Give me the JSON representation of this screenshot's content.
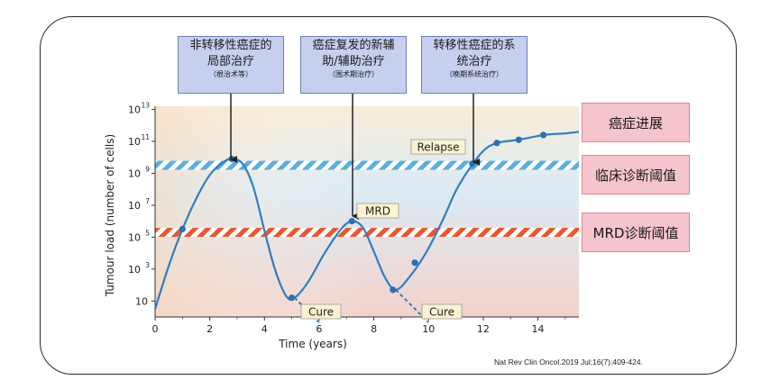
{
  "chart_data": {
    "type": "line",
    "xlabel": "Time (years)",
    "ylabel": "Tumour load (number of cells)",
    "xlim": [
      0,
      15.5
    ],
    "ylim_log10": [
      0,
      13.2
    ],
    "x_ticks": [
      "0",
      "2",
      "4",
      "6",
      "8",
      "10",
      "12",
      "14"
    ],
    "y_ticks": [
      {
        "base": "10",
        "exp": "13"
      },
      {
        "base": "10",
        "exp": "11"
      },
      {
        "base": "10",
        "exp": "9"
      },
      {
        "base": "10",
        "exp": "7"
      },
      {
        "base": "10",
        "exp": "5"
      },
      {
        "base": "10",
        "exp": "3"
      },
      {
        "base": "10",
        "exp": ""
      }
    ],
    "thresholds": [
      {
        "name": "clinical_detection",
        "log10": 9.5,
        "color": "#5aaee0"
      },
      {
        "name": "mrd_detection",
        "log10": 5.3,
        "color": "#e8572f"
      }
    ],
    "series_curve": [
      [
        0,
        0.5
      ],
      [
        0.5,
        3.2
      ],
      [
        1,
        5.5
      ],
      [
        1.5,
        7.4
      ],
      [
        2,
        8.9
      ],
      [
        2.5,
        9.7
      ],
      [
        2.8,
        9.9
      ],
      [
        3.2,
        9.6
      ],
      [
        3.6,
        8.1
      ],
      [
        4,
        5.4
      ],
      [
        4.4,
        2.9
      ],
      [
        4.8,
        1.3
      ],
      [
        5.1,
        1.2
      ],
      [
        5.6,
        2.2
      ],
      [
        6.2,
        4.0
      ],
      [
        6.8,
        5.5
      ],
      [
        7.2,
        6.0
      ],
      [
        7.6,
        5.6
      ],
      [
        8.0,
        4.1
      ],
      [
        8.4,
        2.5
      ],
      [
        8.8,
        1.7
      ],
      [
        9.3,
        2.5
      ],
      [
        9.9,
        4.0
      ],
      [
        10.5,
        6.0
      ],
      [
        11.0,
        7.9
      ],
      [
        11.5,
        9.3
      ],
      [
        12.0,
        10.4
      ],
      [
        12.5,
        10.9
      ],
      [
        13.3,
        11.1
      ],
      [
        14.2,
        11.4
      ],
      [
        15.0,
        11.5
      ],
      [
        15.5,
        11.6
      ]
    ],
    "points": [
      [
        1,
        5.5
      ],
      [
        2.8,
        9.9
      ],
      [
        5.0,
        1.2
      ],
      [
        7.2,
        6.0
      ],
      [
        8.7,
        1.7
      ],
      [
        9.5,
        3.4
      ],
      [
        11.6,
        9.6
      ],
      [
        12.5,
        10.9
      ],
      [
        13.3,
        11.1
      ],
      [
        14.2,
        11.4
      ]
    ],
    "cure_branches": [
      {
        "from": [
          5.1,
          1.2
        ],
        "to": [
          6.0,
          -0.4
        ]
      },
      {
        "from": [
          8.8,
          1.7
        ],
        "to": [
          10.0,
          -0.4
        ]
      }
    ],
    "labels": {
      "relapse": "Relapse",
      "mrd": "MRD",
      "cure1": "Cure",
      "cure2": "Cure"
    },
    "colors": {
      "curve": "#2f7fc1",
      "point": "#2f6fae",
      "bg_left": "#f7e0c3",
      "bg_mid": "#dcebf4",
      "bg_low": "#f3cfc8",
      "label_bg": "#fbf3cf"
    }
  },
  "boxes": [
    {
      "main": "非转移性癌症的局部治疗",
      "line1": "非转移性癌症的",
      "line2": "局部治疗",
      "sub": "（根治术等）"
    },
    {
      "line1": "癌症复发的新辅",
      "line2": "助/辅助治疗",
      "sub": "（围术期治疗）"
    },
    {
      "line1": "转移性癌症的系",
      "line2": "统治疗",
      "sub": "（晚期系统治疗）"
    }
  ],
  "legend_boxes": [
    "癌症进展",
    "临床诊断阈值",
    "MRD诊断阈值"
  ],
  "source": "Nat Rev Clin Oncol.2019 Jul;16(7):409-424."
}
